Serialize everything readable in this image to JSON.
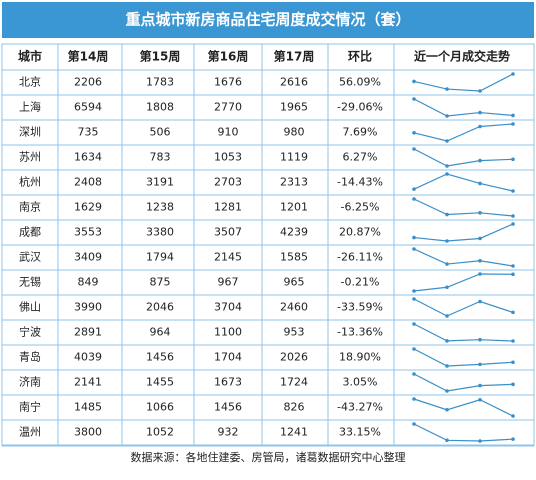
{
  "title": "重点城市新房商品住宅周度成交情况（套）",
  "table": {
    "header": [
      "城市",
      "第14周",
      "第15周",
      "第16周",
      "第17周",
      "环比",
      "近一个月成交走势"
    ],
    "rows": [
      [
        "北京",
        2206,
        1783,
        1676,
        2616,
        "56.09%"
      ],
      [
        "上海",
        6594,
        1808,
        2770,
        1965,
        "-29.06%"
      ],
      [
        "深圳",
        735,
        506,
        910,
        980,
        "7.69%"
      ],
      [
        "苏州",
        1634,
        783,
        1053,
        1119,
        "6.27%"
      ],
      [
        "杭州",
        2408,
        3191,
        2703,
        2313,
        "-14.43%"
      ],
      [
        "南京",
        1629,
        1238,
        1281,
        1201,
        "-6.25%"
      ],
      [
        "成都",
        3553,
        3380,
        3507,
        4239,
        "20.87%"
      ],
      [
        "武汉",
        3409,
        1794,
        2145,
        1585,
        "-26.11%"
      ],
      [
        "无锡",
        849,
        875,
        967,
        965,
        "-0.21%"
      ],
      [
        "佛山",
        3990,
        2046,
        3704,
        2460,
        "-33.59%"
      ],
      [
        "宁波",
        2891,
        964,
        1100,
        953,
        "-13.36%"
      ],
      [
        "青岛",
        4039,
        1456,
        1704,
        2026,
        "18.90%"
      ],
      [
        "济南",
        2141,
        1455,
        1673,
        1724,
        "3.05%"
      ],
      [
        "南宁",
        1485,
        1066,
        1456,
        826,
        "-43.27%"
      ],
      [
        "温州",
        3800,
        1052,
        932,
        1241,
        "33.15%"
      ]
    ]
  },
  "source": "数据来源：各地住建委、房管局，诸葛数据研究中心整理"
}
